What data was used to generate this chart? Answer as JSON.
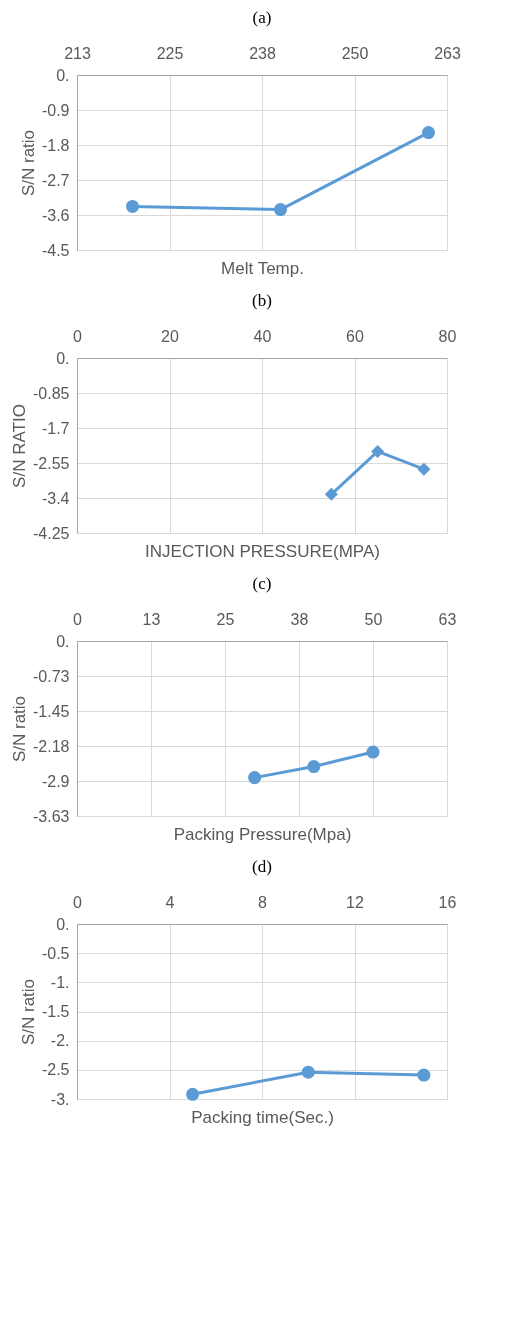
{
  "chart_data": [
    {
      "type": "line",
      "title": "(a)",
      "xlabel": "Melt Temp.",
      "ylabel": "S/N ratio",
      "x": [
        220,
        240,
        260
      ],
      "series": [
        {
          "color": "#5b9bd5",
          "values": [
            -3.38,
            -3.46,
            -1.48
          ]
        }
      ],
      "xlim": [
        212.5,
        262.5
      ],
      "xticks": [
        {
          "value": 212.5,
          "label": "213"
        },
        225,
        {
          "value": 237.5,
          "label": "238"
        },
        250,
        {
          "value": 262.5,
          "label": "263"
        }
      ],
      "ylim": [
        -4.5,
        0
      ],
      "yticks": [
        {
          "value": 0,
          "label": "0."
        },
        -0.9,
        -1.8,
        -2.7,
        -3.6,
        -4.5
      ],
      "grid": true,
      "marker": "circle"
    },
    {
      "type": "line",
      "title": "(b)",
      "xlabel": "INJECTION PRESSURE(MPA)",
      "ylabel": "S/N RATIO",
      "x": [
        55,
        65,
        75
      ],
      "series": [
        {
          "color": "#5b9bd5",
          "values": [
            -3.31,
            -2.27,
            -2.7
          ]
        }
      ],
      "xlim": [
        0,
        80
      ],
      "xticks": [
        0,
        20,
        40,
        60,
        80
      ],
      "ylim": [
        -4.25,
        0
      ],
      "yticks": [
        {
          "value": 0,
          "label": "0."
        },
        -0.85,
        -1.7,
        -2.55,
        -3.4,
        -4.25
      ],
      "grid": true,
      "marker": "diamond"
    },
    {
      "type": "line",
      "title": "(c)",
      "xlabel": "Packing Pressure(Mpa)",
      "ylabel": "S/N ratio",
      "x": [
        30,
        40,
        50
      ],
      "series": [
        {
          "color": "#5b9bd5",
          "values": [
            -2.83,
            -2.6,
            -2.3
          ]
        }
      ],
      "xlim": [
        0,
        62.5
      ],
      "xticks": [
        0,
        {
          "value": 12.5,
          "label": "13"
        },
        25,
        {
          "value": 37.5,
          "label": "38"
        },
        50,
        {
          "value": 62.5,
          "label": "63"
        }
      ],
      "ylim": [
        -3.625,
        0
      ],
      "yticks": [
        {
          "value": 0,
          "label": "0."
        },
        {
          "value": -0.725,
          "label": "-0.73"
        },
        -1.45,
        {
          "value": -2.175,
          "label": "-2.18"
        },
        -2.9,
        {
          "value": -3.625,
          "label": "-3.63"
        }
      ],
      "grid": true,
      "marker": "circle"
    },
    {
      "type": "line",
      "title": "(d)",
      "xlabel": "Packing time(Sec.)",
      "ylabel": "S/N ratio",
      "x": [
        5,
        10,
        15
      ],
      "series": [
        {
          "color": "#5b9bd5",
          "values": [
            -2.92,
            -2.54,
            -2.59
          ]
        }
      ],
      "xlim": [
        0,
        16
      ],
      "xticks": [
        0,
        4,
        8,
        12,
        16
      ],
      "ylim": [
        -3,
        0
      ],
      "yticks": [
        {
          "value": 0,
          "label": "0."
        },
        -0.5,
        {
          "value": -1,
          "label": "-1."
        },
        -1.5,
        {
          "value": -2,
          "label": "-2."
        },
        -2.5,
        {
          "value": -3,
          "label": "-3."
        }
      ],
      "grid": true,
      "marker": "circle"
    }
  ]
}
